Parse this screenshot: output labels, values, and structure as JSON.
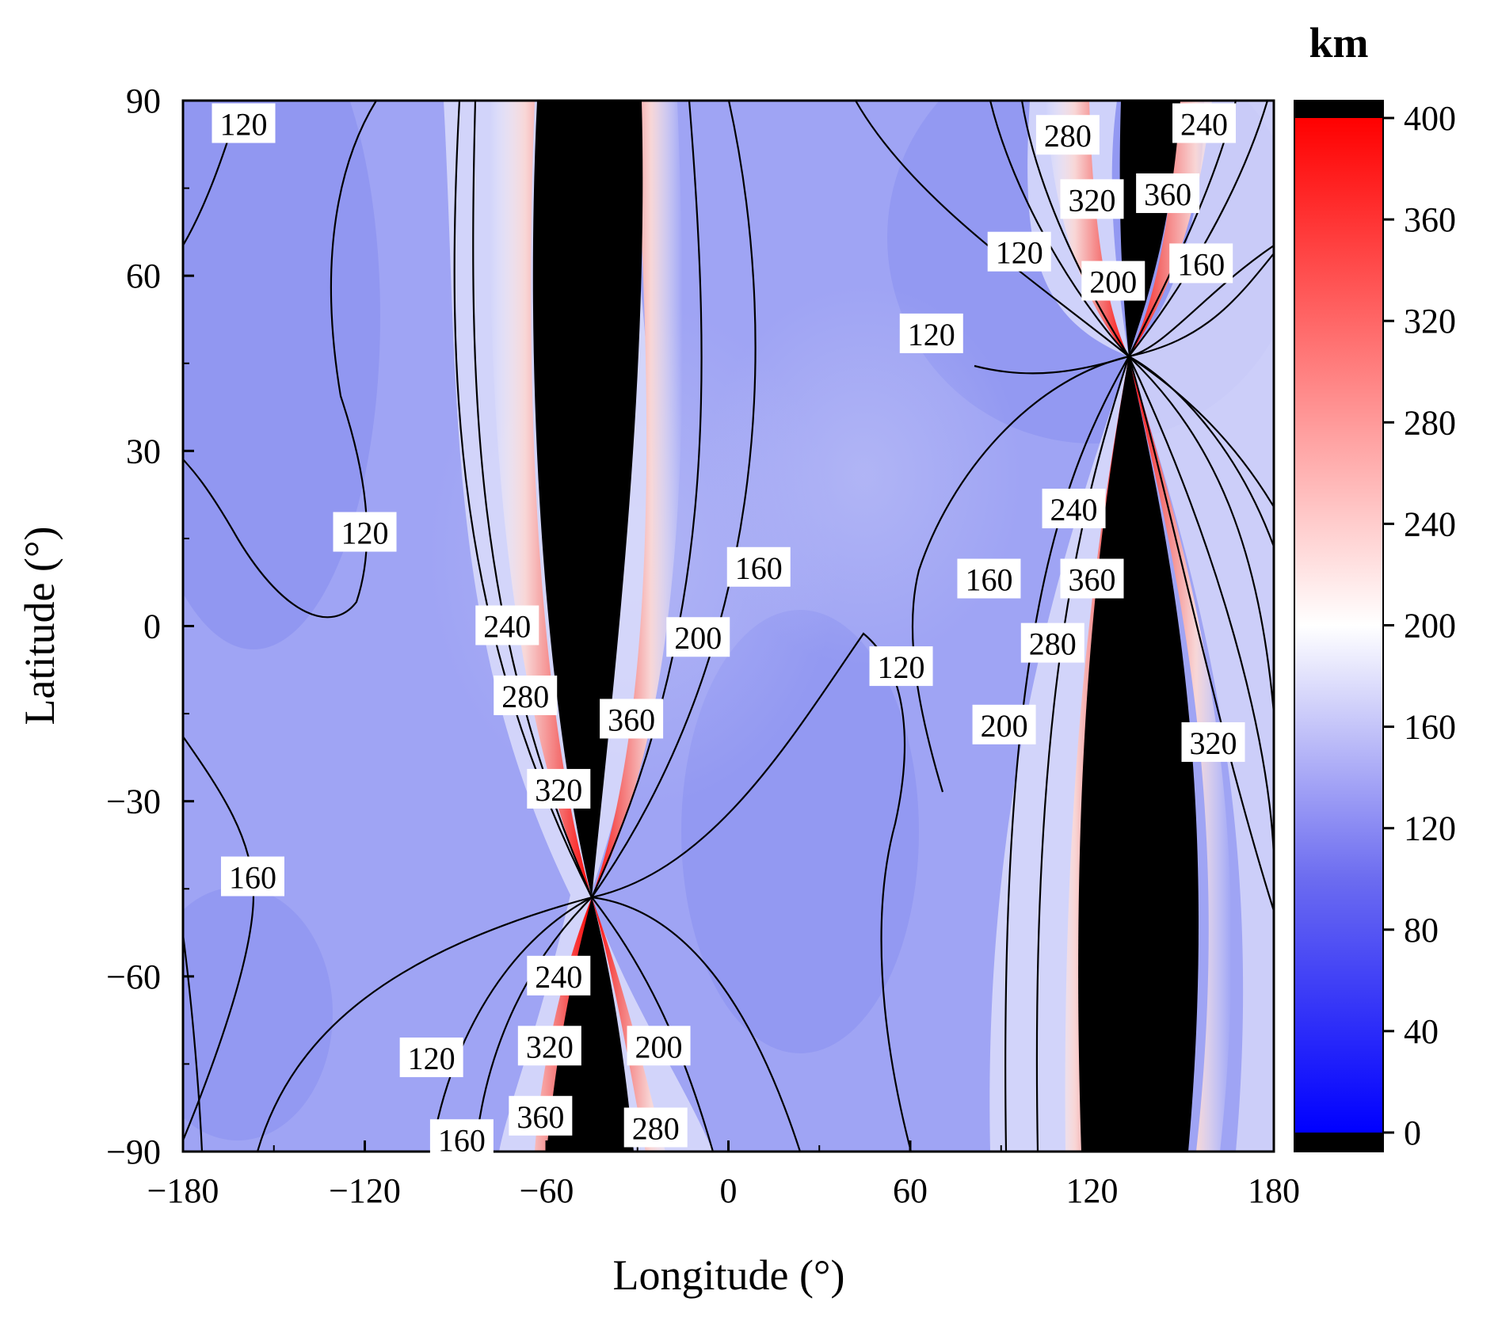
{
  "chart_data": {
    "type": "contour",
    "title": "",
    "xlabel": "Longitude (°)",
    "ylabel": "Latitude (°)",
    "xlim": [
      -180,
      180
    ],
    "ylim": [
      -90,
      90
    ],
    "xticks": [
      -180,
      -120,
      -60,
      0,
      60,
      120,
      180
    ],
    "yticks": [
      90,
      60,
      30,
      0,
      -30,
      -60,
      -90
    ],
    "xtick_labels": [
      "−180",
      "−120",
      "−60",
      "0",
      "60",
      "120",
      "180"
    ],
    "ytick_labels": [
      "90",
      "60",
      "30",
      "0",
      "−30",
      "−60",
      "−90"
    ],
    "colorbar": {
      "unit": "km",
      "min": 0,
      "max": 400,
      "ticks": [
        400,
        360,
        320,
        280,
        240,
        200,
        160,
        120,
        80,
        40,
        0
      ],
      "colors": {
        "low": "#0000ff",
        "mid": "#ffffff",
        "high": "#ff0000",
        "overflow": "#000000"
      }
    },
    "singular_points": [
      {
        "lon": -45,
        "lat": -45
      },
      {
        "lon": 135,
        "lat": 45
      }
    ],
    "contour_levels": [
      120,
      160,
      200,
      240,
      280,
      320,
      360
    ],
    "contour_labels": [
      {
        "text": "120",
        "lon": -160,
        "lat": 86
      },
      {
        "text": "120",
        "lon": -120,
        "lat": 16
      },
      {
        "text": "240",
        "lon": -73,
        "lat": 0
      },
      {
        "text": "280",
        "lon": -67,
        "lat": -12
      },
      {
        "text": "360",
        "lon": -32,
        "lat": -16
      },
      {
        "text": "320",
        "lon": -56,
        "lat": -28
      },
      {
        "text": "200",
        "lon": -10,
        "lat": -2
      },
      {
        "text": "160",
        "lon": 10,
        "lat": 10
      },
      {
        "text": "120",
        "lon": 57,
        "lat": -7
      },
      {
        "text": "160",
        "lon": -157,
        "lat": -43
      },
      {
        "text": "240",
        "lon": -56,
        "lat": -60
      },
      {
        "text": "320",
        "lon": -59,
        "lat": -72
      },
      {
        "text": "200",
        "lon": -23,
        "lat": -72
      },
      {
        "text": "120",
        "lon": -98,
        "lat": -74
      },
      {
        "text": "360",
        "lon": -62,
        "lat": -84
      },
      {
        "text": "160",
        "lon": -88,
        "lat": -88
      },
      {
        "text": "280",
        "lon": -24,
        "lat": -86
      },
      {
        "text": "280",
        "lon": 112,
        "lat": 84
      },
      {
        "text": "240",
        "lon": 157,
        "lat": 86
      },
      {
        "text": "320",
        "lon": 120,
        "lat": 73
      },
      {
        "text": "360",
        "lon": 145,
        "lat": 74
      },
      {
        "text": "120",
        "lon": 96,
        "lat": 64
      },
      {
        "text": "160",
        "lon": 156,
        "lat": 62
      },
      {
        "text": "200",
        "lon": 127,
        "lat": 59
      },
      {
        "text": "120",
        "lon": 67,
        "lat": 50
      },
      {
        "text": "240",
        "lon": 114,
        "lat": 20
      },
      {
        "text": "160",
        "lon": 86,
        "lat": 8
      },
      {
        "text": "360",
        "lon": 120,
        "lat": 8
      },
      {
        "text": "280",
        "lon": 107,
        "lat": -3
      },
      {
        "text": "200",
        "lon": 91,
        "lat": -17
      },
      {
        "text": "320",
        "lon": 160,
        "lat": -20
      }
    ]
  }
}
